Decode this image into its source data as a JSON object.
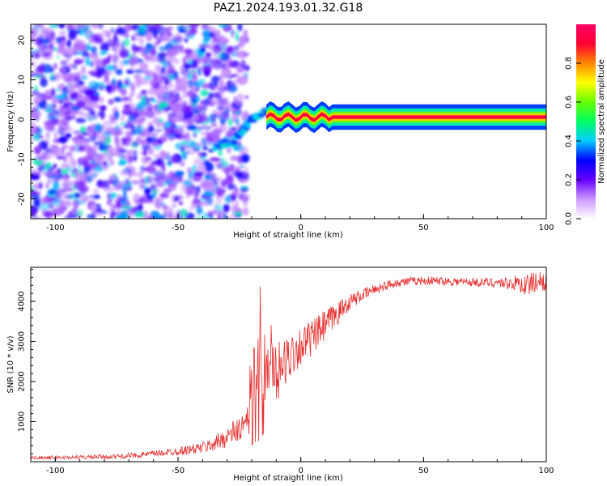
{
  "figure": {
    "title": "PAZ1.2024.193.01.32.G18"
  },
  "chart_data": [
    {
      "type": "heatmap",
      "title": "PAZ1.2024.193.01.32.G18",
      "xlabel": "Height of straight line (km)",
      "ylabel": "Frequency (Hz)",
      "xlim": [
        -110,
        100
      ],
      "ylim": [
        -25,
        24
      ],
      "xticks": [
        -100,
        -50,
        0,
        50,
        100
      ],
      "yticks": [
        -20,
        -10,
        0,
        10,
        20
      ],
      "colorbar": {
        "label": "Normalized spectral amplitude",
        "range": [
          0,
          1
        ],
        "ticks": [
          0.0,
          0.2,
          0.4,
          0.6,
          0.8
        ],
        "colors": [
          "#ffffff",
          "#cc99ff",
          "#6600ff",
          "#0000ff",
          "#00ccff",
          "#00ff66",
          "#66ff00",
          "#ffff00",
          "#ff8800",
          "#ff0033",
          "#ff0066"
        ]
      },
      "description_series": [
        {
          "region": "noise",
          "x_range": [
            -110,
            -22
          ],
          "y_range": [
            -25,
            24
          ],
          "amplitude": 0.1
        },
        {
          "region": "transition",
          "x_range": [
            -35,
            -10
          ],
          "y_path": [
            [
              -35,
              -7
            ],
            [
              -28,
              -6
            ],
            [
              -24,
              -3
            ],
            [
              -20,
              0
            ],
            [
              -15,
              2
            ],
            [
              -10,
              2
            ]
          ],
          "amplitude": 0.3
        },
        {
          "region": "signal",
          "x_range": [
            -10,
            100
          ],
          "y_center": 0.6,
          "amplitude": 0.95
        }
      ]
    },
    {
      "type": "line",
      "xlabel": "Height of straight line (km)",
      "ylabel": "SNR (10 * v/v)",
      "xlim": [
        -110,
        100
      ],
      "ylim": [
        0,
        4850
      ],
      "xticks": [
        -100,
        -50,
        0,
        50,
        100
      ],
      "yticks": [
        1000,
        2000,
        3000,
        4000
      ],
      "line_color": "#e53030",
      "envelope": {
        "x": [
          -110,
          -90,
          -75,
          -65,
          -55,
          -45,
          -38,
          -33,
          -28,
          -24,
          -21,
          -19,
          -17,
          -15,
          -12,
          -8,
          -4,
          0,
          5,
          10,
          15,
          20,
          25,
          30,
          35,
          40,
          50,
          60,
          70,
          80,
          88,
          92,
          96,
          100
        ],
        "y": [
          100,
          110,
          130,
          170,
          230,
          300,
          380,
          520,
          700,
          850,
          1000,
          2400,
          2600,
          2300,
          2200,
          2300,
          2700,
          2900,
          3100,
          3400,
          3700,
          4000,
          4150,
          4300,
          4400,
          4480,
          4520,
          4500,
          4480,
          4470,
          4450,
          4400,
          4500,
          4520
        ],
        "noise": [
          40,
          50,
          60,
          70,
          90,
          120,
          160,
          220,
          300,
          380,
          420,
          1200,
          1300,
          1000,
          800,
          700,
          600,
          500,
          450,
          400,
          300,
          200,
          150,
          130,
          120,
          110,
          110,
          110,
          110,
          120,
          200,
          300,
          250,
          250
        ]
      }
    }
  ]
}
